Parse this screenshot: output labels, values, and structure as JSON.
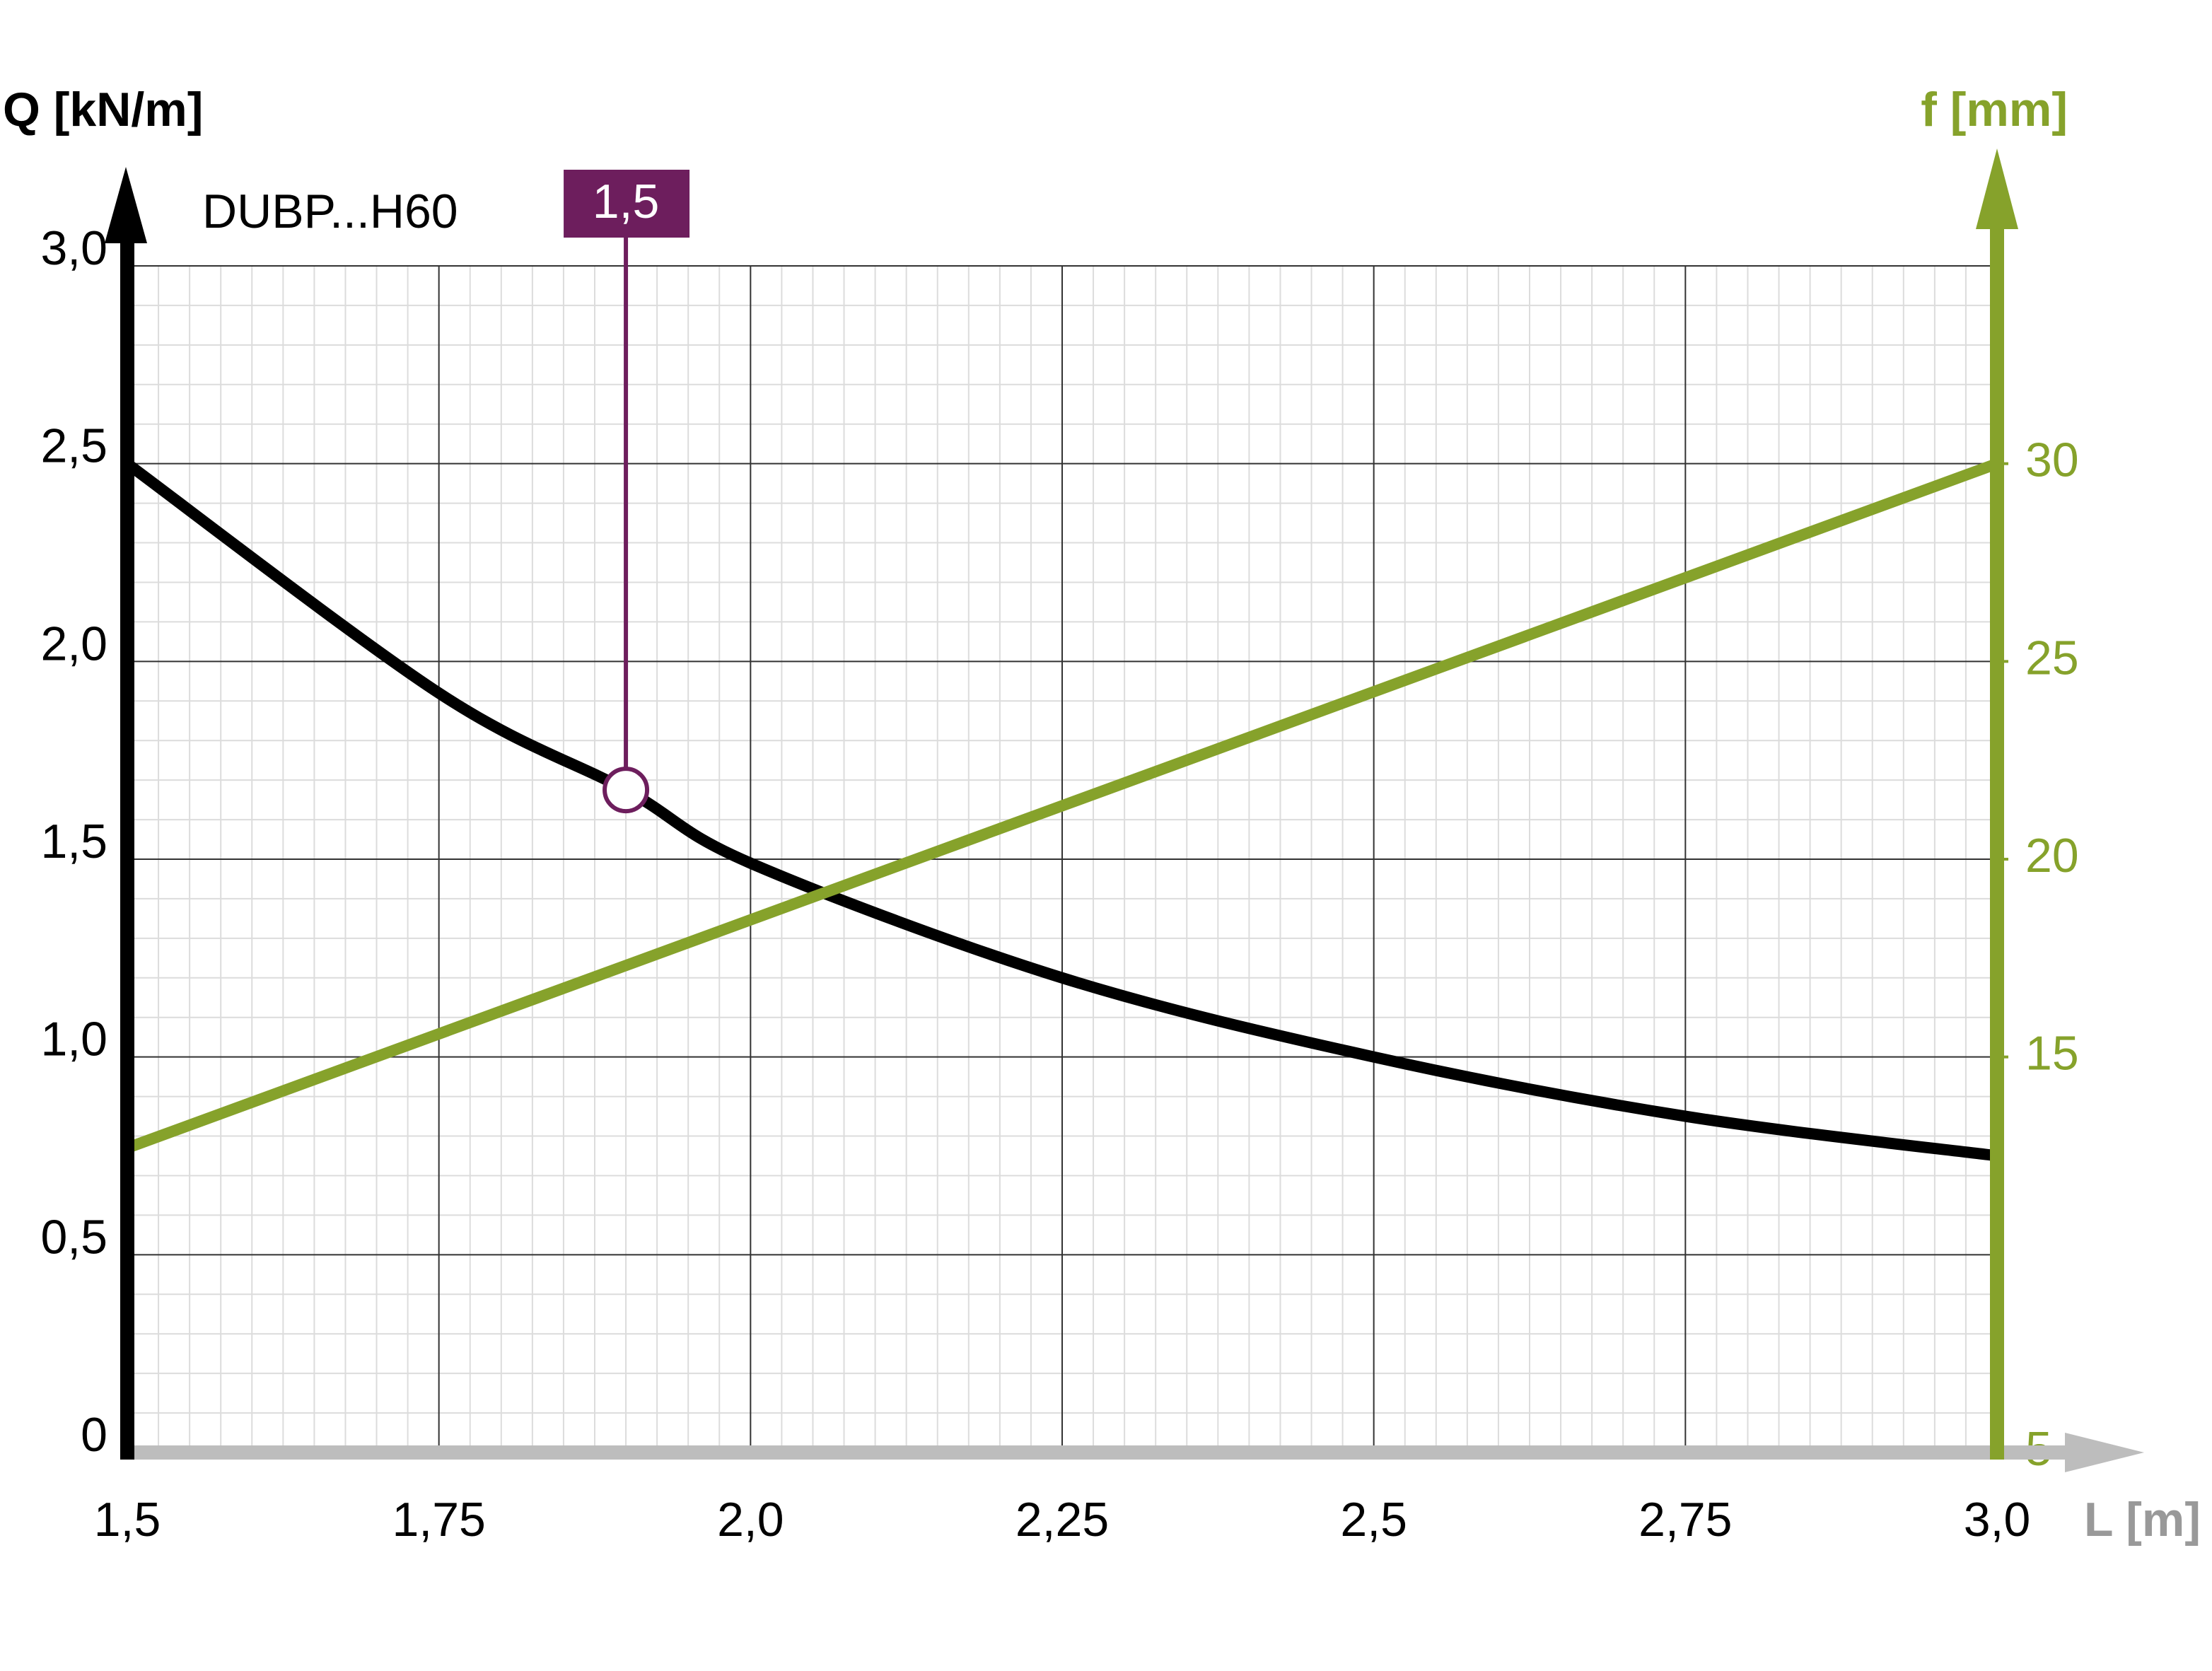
{
  "chart_data": {
    "type": "line",
    "title": "DUBP...H60",
    "y_label": "Q [kN/m]",
    "y2_label": "f [mm]",
    "x_label": "L [m]",
    "x": [
      1.5,
      1.75,
      1.9,
      2.0,
      2.25,
      2.5,
      2.75,
      3.0
    ],
    "series": [
      {
        "name": "Q",
        "color": "#000000",
        "values": [
          2.5,
          1.92,
          1.675,
          1.49,
          1.2,
          1.0,
          0.85,
          0.75
        ]
      },
      {
        "name": "f",
        "color": "#86a22b",
        "axis": "y2",
        "values": [
          12.7,
          null,
          null,
          null,
          null,
          null,
          null,
          30
        ]
      }
    ],
    "xlim": [
      1.5,
      3.0
    ],
    "xticks": [
      {
        "value": 1.5,
        "label": "1,5"
      },
      {
        "value": 1.75,
        "label": "1,75"
      },
      {
        "value": 2.0,
        "label": "2,0"
      },
      {
        "value": 2.25,
        "label": "2,25"
      },
      {
        "value": 2.5,
        "label": "2,5"
      },
      {
        "value": 2.75,
        "label": "2,75"
      },
      {
        "value": 3.0,
        "label": "3,0"
      }
    ],
    "ylim": [
      0,
      3.0
    ],
    "yticks": [
      0,
      {
        "value": 0.5,
        "label": "0,5"
      },
      {
        "value": 1.0,
        "label": "1,0"
      },
      {
        "value": 1.5,
        "label": "1,5"
      },
      {
        "value": 2.0,
        "label": "2,0"
      },
      {
        "value": 2.5,
        "label": "2,5"
      },
      {
        "value": 3.0,
        "label": "3,0"
      }
    ],
    "y2lim": [
      5,
      35
    ],
    "y2ticks": [
      5,
      15,
      20,
      25,
      30
    ],
    "grid": true,
    "annotation": {
      "x": 1.9,
      "y": 1.675,
      "label": "1,5",
      "color": "#6d1e5d"
    }
  }
}
